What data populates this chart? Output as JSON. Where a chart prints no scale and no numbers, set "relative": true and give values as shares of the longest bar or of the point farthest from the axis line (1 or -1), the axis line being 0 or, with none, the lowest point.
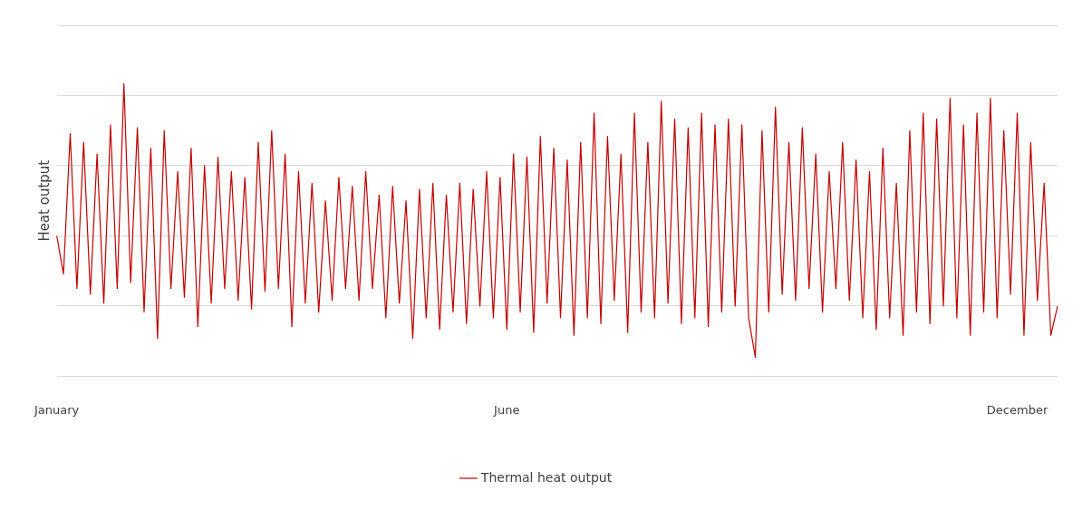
{
  "chart_data": {
    "type": "line",
    "ylabel": "Heat output",
    "relative": true,
    "grid": "y",
    "legend": "bottom",
    "marker": "none",
    "line_style": "solid",
    "categories": [
      "January",
      null,
      null,
      null,
      null,
      null,
      null,
      null,
      null,
      null,
      null,
      null,
      null,
      null,
      null,
      null,
      null,
      null,
      null,
      null,
      null,
      null,
      null,
      null,
      null,
      null,
      null,
      null,
      null,
      null,
      null,
      null,
      null,
      null,
      null,
      null,
      null,
      null,
      null,
      null,
      null,
      null,
      null,
      null,
      null,
      null,
      null,
      null,
      null,
      null,
      null,
      null,
      null,
      null,
      null,
      null,
      null,
      null,
      null,
      null,
      null,
      null,
      null,
      null,
      null,
      null,
      null,
      "June",
      null,
      null,
      null,
      null,
      null,
      null,
      null,
      null,
      null,
      null,
      null,
      null,
      null,
      null,
      null,
      null,
      null,
      null,
      null,
      null,
      null,
      null,
      null,
      null,
      null,
      null,
      null,
      null,
      null,
      null,
      null,
      null,
      null,
      null,
      null,
      null,
      null,
      null,
      null,
      null,
      null,
      null,
      null,
      null,
      null,
      null,
      null,
      null,
      null,
      null,
      null,
      null,
      null,
      null,
      null,
      null,
      null,
      null,
      null,
      null,
      null,
      null,
      null,
      null,
      null,
      null,
      null,
      null,
      null,
      null,
      null,
      null,
      null,
      null,
      null,
      "December",
      null,
      null,
      null,
      null,
      null,
      null
    ],
    "series": [
      {
        "name": "Thermal heat output",
        "color": "#c00000",
        "values": [
          0.48,
          0.35,
          0.83,
          0.3,
          0.8,
          0.28,
          0.76,
          0.25,
          0.86,
          0.3,
          1.0,
          0.32,
          0.85,
          0.22,
          0.78,
          0.13,
          0.84,
          0.3,
          0.7,
          0.27,
          0.78,
          0.17,
          0.72,
          0.25,
          0.75,
          0.3,
          0.7,
          0.26,
          0.68,
          0.23,
          0.8,
          0.29,
          0.84,
          0.3,
          0.76,
          0.17,
          0.7,
          0.25,
          0.66,
          0.22,
          0.6,
          0.26,
          0.68,
          0.3,
          0.65,
          0.26,
          0.7,
          0.3,
          0.62,
          0.2,
          0.65,
          0.25,
          0.6,
          0.13,
          0.64,
          0.2,
          0.66,
          0.16,
          0.62,
          0.22,
          0.66,
          0.18,
          0.64,
          0.24,
          0.7,
          0.2,
          0.68,
          0.16,
          0.76,
          0.22,
          0.75,
          0.15,
          0.82,
          0.25,
          0.78,
          0.2,
          0.74,
          0.14,
          0.8,
          0.2,
          0.9,
          0.18,
          0.82,
          0.26,
          0.76,
          0.15,
          0.9,
          0.22,
          0.8,
          0.2,
          0.94,
          0.25,
          0.88,
          0.18,
          0.85,
          0.2,
          0.9,
          0.17,
          0.86,
          0.22,
          0.88,
          0.24,
          0.86,
          0.2,
          0.065,
          0.84,
          0.22,
          0.92,
          0.28,
          0.8,
          0.26,
          0.85,
          0.3,
          0.76,
          0.22,
          0.7,
          0.3,
          0.8,
          0.26,
          0.74,
          0.2,
          0.7,
          0.16,
          0.78,
          0.2,
          0.66,
          0.14,
          0.84,
          0.22,
          0.9,
          0.18,
          0.88,
          0.24,
          0.95,
          0.2,
          0.86,
          0.14,
          0.9,
          0.22,
          0.95,
          0.2,
          0.84,
          0.28,
          0.9,
          0.14,
          0.8,
          0.26,
          0.66,
          0.14,
          0.24
        ]
      }
    ]
  }
}
